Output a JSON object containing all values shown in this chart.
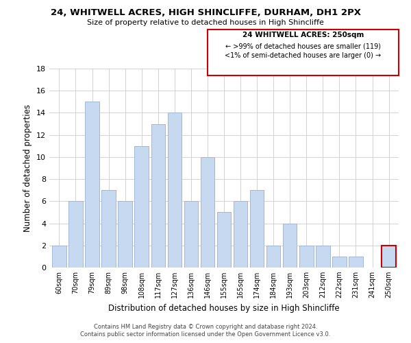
{
  "title": "24, WHITWELL ACRES, HIGH SHINCLIFFE, DURHAM, DH1 2PX",
  "subtitle": "Size of property relative to detached houses in High Shincliffe",
  "xlabel": "Distribution of detached houses by size in High Shincliffe",
  "ylabel": "Number of detached properties",
  "bar_color": "#c6d9f0",
  "bar_edge_color": "#a0b8d8",
  "bins": [
    "60sqm",
    "70sqm",
    "79sqm",
    "89sqm",
    "98sqm",
    "108sqm",
    "117sqm",
    "127sqm",
    "136sqm",
    "146sqm",
    "155sqm",
    "165sqm",
    "174sqm",
    "184sqm",
    "193sqm",
    "203sqm",
    "212sqm",
    "222sqm",
    "231sqm",
    "241sqm",
    "250sqm"
  ],
  "values": [
    2,
    6,
    15,
    7,
    6,
    11,
    13,
    14,
    6,
    10,
    5,
    6,
    7,
    2,
    4,
    2,
    2,
    1,
    1,
    0,
    2
  ],
  "ylim": [
    0,
    18
  ],
  "yticks": [
    0,
    2,
    4,
    6,
    8,
    10,
    12,
    14,
    16,
    18
  ],
  "annotation_title": "24 WHITWELL ACRES: 250sqm",
  "annotation_line1": "← >99% of detached houses are smaller (119)",
  "annotation_line2": "<1% of semi-detached houses are larger (0) →",
  "annotation_box_color": "#ffffff",
  "annotation_border_color": "#cc0000",
  "footer_line1": "Contains HM Land Registry data © Crown copyright and database right 2024.",
  "footer_line2": "Contains public sector information licensed under the Open Government Licence v3.0.",
  "background_color": "#ffffff",
  "grid_color": "#cccccc",
  "highlight_bar_index": 20
}
